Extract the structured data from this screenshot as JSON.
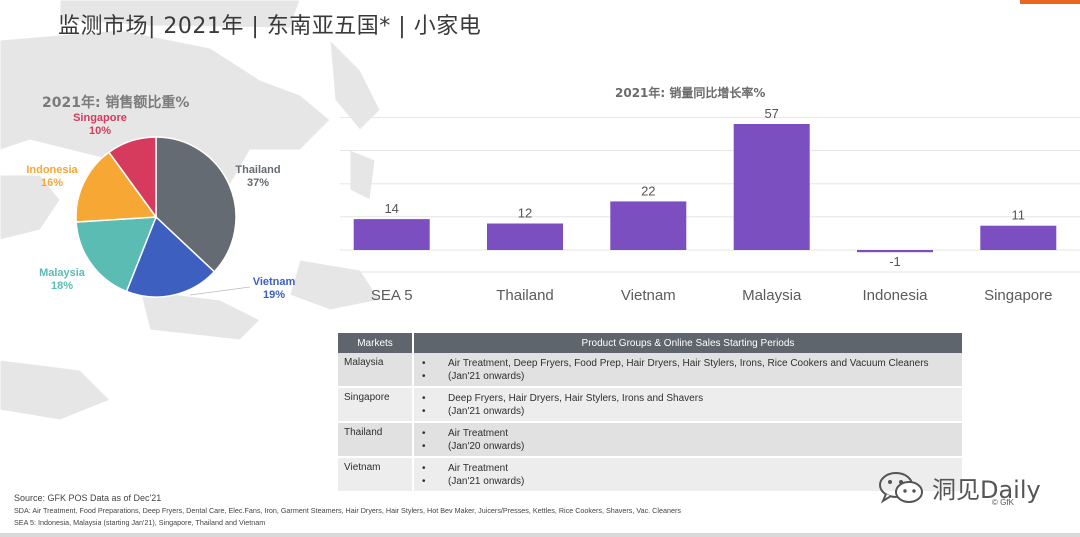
{
  "page": {
    "title": "监测市场| 2021年 | 东南亚五国* | 小家电"
  },
  "chart_data": [
    {
      "type": "pie",
      "title": "2021年: 销售额比重%",
      "slices": [
        {
          "label": "Thailand",
          "value": 37,
          "value_label": "37%",
          "color": "#646b72"
        },
        {
          "label": "Vietnam",
          "value": 19,
          "value_label": "19%",
          "color": "#3d5fc0"
        },
        {
          "label": "Malaysia",
          "value": 18,
          "value_label": "18%",
          "color": "#5bbcb4"
        },
        {
          "label": "Indonesia",
          "value": 16,
          "value_label": "16%",
          "color": "#f7a733"
        },
        {
          "label": "Singapore",
          "value": 10,
          "value_label": "10%",
          "color": "#d63a5c"
        }
      ]
    },
    {
      "type": "bar",
      "title": "2021年: 销量同比增长率%",
      "categories": [
        "SEA 5",
        "Thailand",
        "Vietnam",
        "Malaysia",
        "Indonesia",
        "Singapore"
      ],
      "values": [
        14,
        12,
        22,
        57,
        -1,
        11
      ],
      "color": "#7b4fc0",
      "ylim": [
        -5,
        60
      ],
      "grid": true
    }
  ],
  "table": {
    "headers": [
      "Markets",
      "Product Groups &  Online Sales Starting Periods"
    ],
    "rows": [
      {
        "market": "Malaysia",
        "items": [
          "Air Treatment, Deep Fryers, Food Prep, Hair Dryers, Hair Stylers, Irons, Rice Cookers and Vacuum Cleaners",
          "(Jan'21 onwards)"
        ]
      },
      {
        "market": "Singapore",
        "items": [
          "Deep Fryers, Hair Dryers, Hair Stylers, Irons and Shavers",
          "(Jan'21 onwards)"
        ]
      },
      {
        "market": "Thailand",
        "items": [
          "Air Treatment",
          "(Jan'20 onwards)"
        ]
      },
      {
        "market": "Vietnam",
        "items": [
          "Air Treatment",
          "(Jan'21 onwards)"
        ]
      }
    ],
    "bullet": "•"
  },
  "footer": {
    "source": "Source: GFK POS Data as of Dec'21",
    "note1": "SDA: Air Treatment, Food Preparations, Deep Fryers, Dental Care, Elec.Fans, Iron, Garment Steamers, Hair Dryers, Hair Stylers, Hot Bev Maker, Juicers/Presses, Kettles,  Rice Cookers, Shavers, Vac. Cleaners",
    "note2": "SEA 5: Indonesia, Malaysia (starting Jan'21), Singapore, Thailand and Vietnam",
    "watermark": "洞见Daily",
    "copyright": "© GfK"
  },
  "colors": {
    "accent": "#e8661e",
    "table_header": "#5e656c"
  }
}
